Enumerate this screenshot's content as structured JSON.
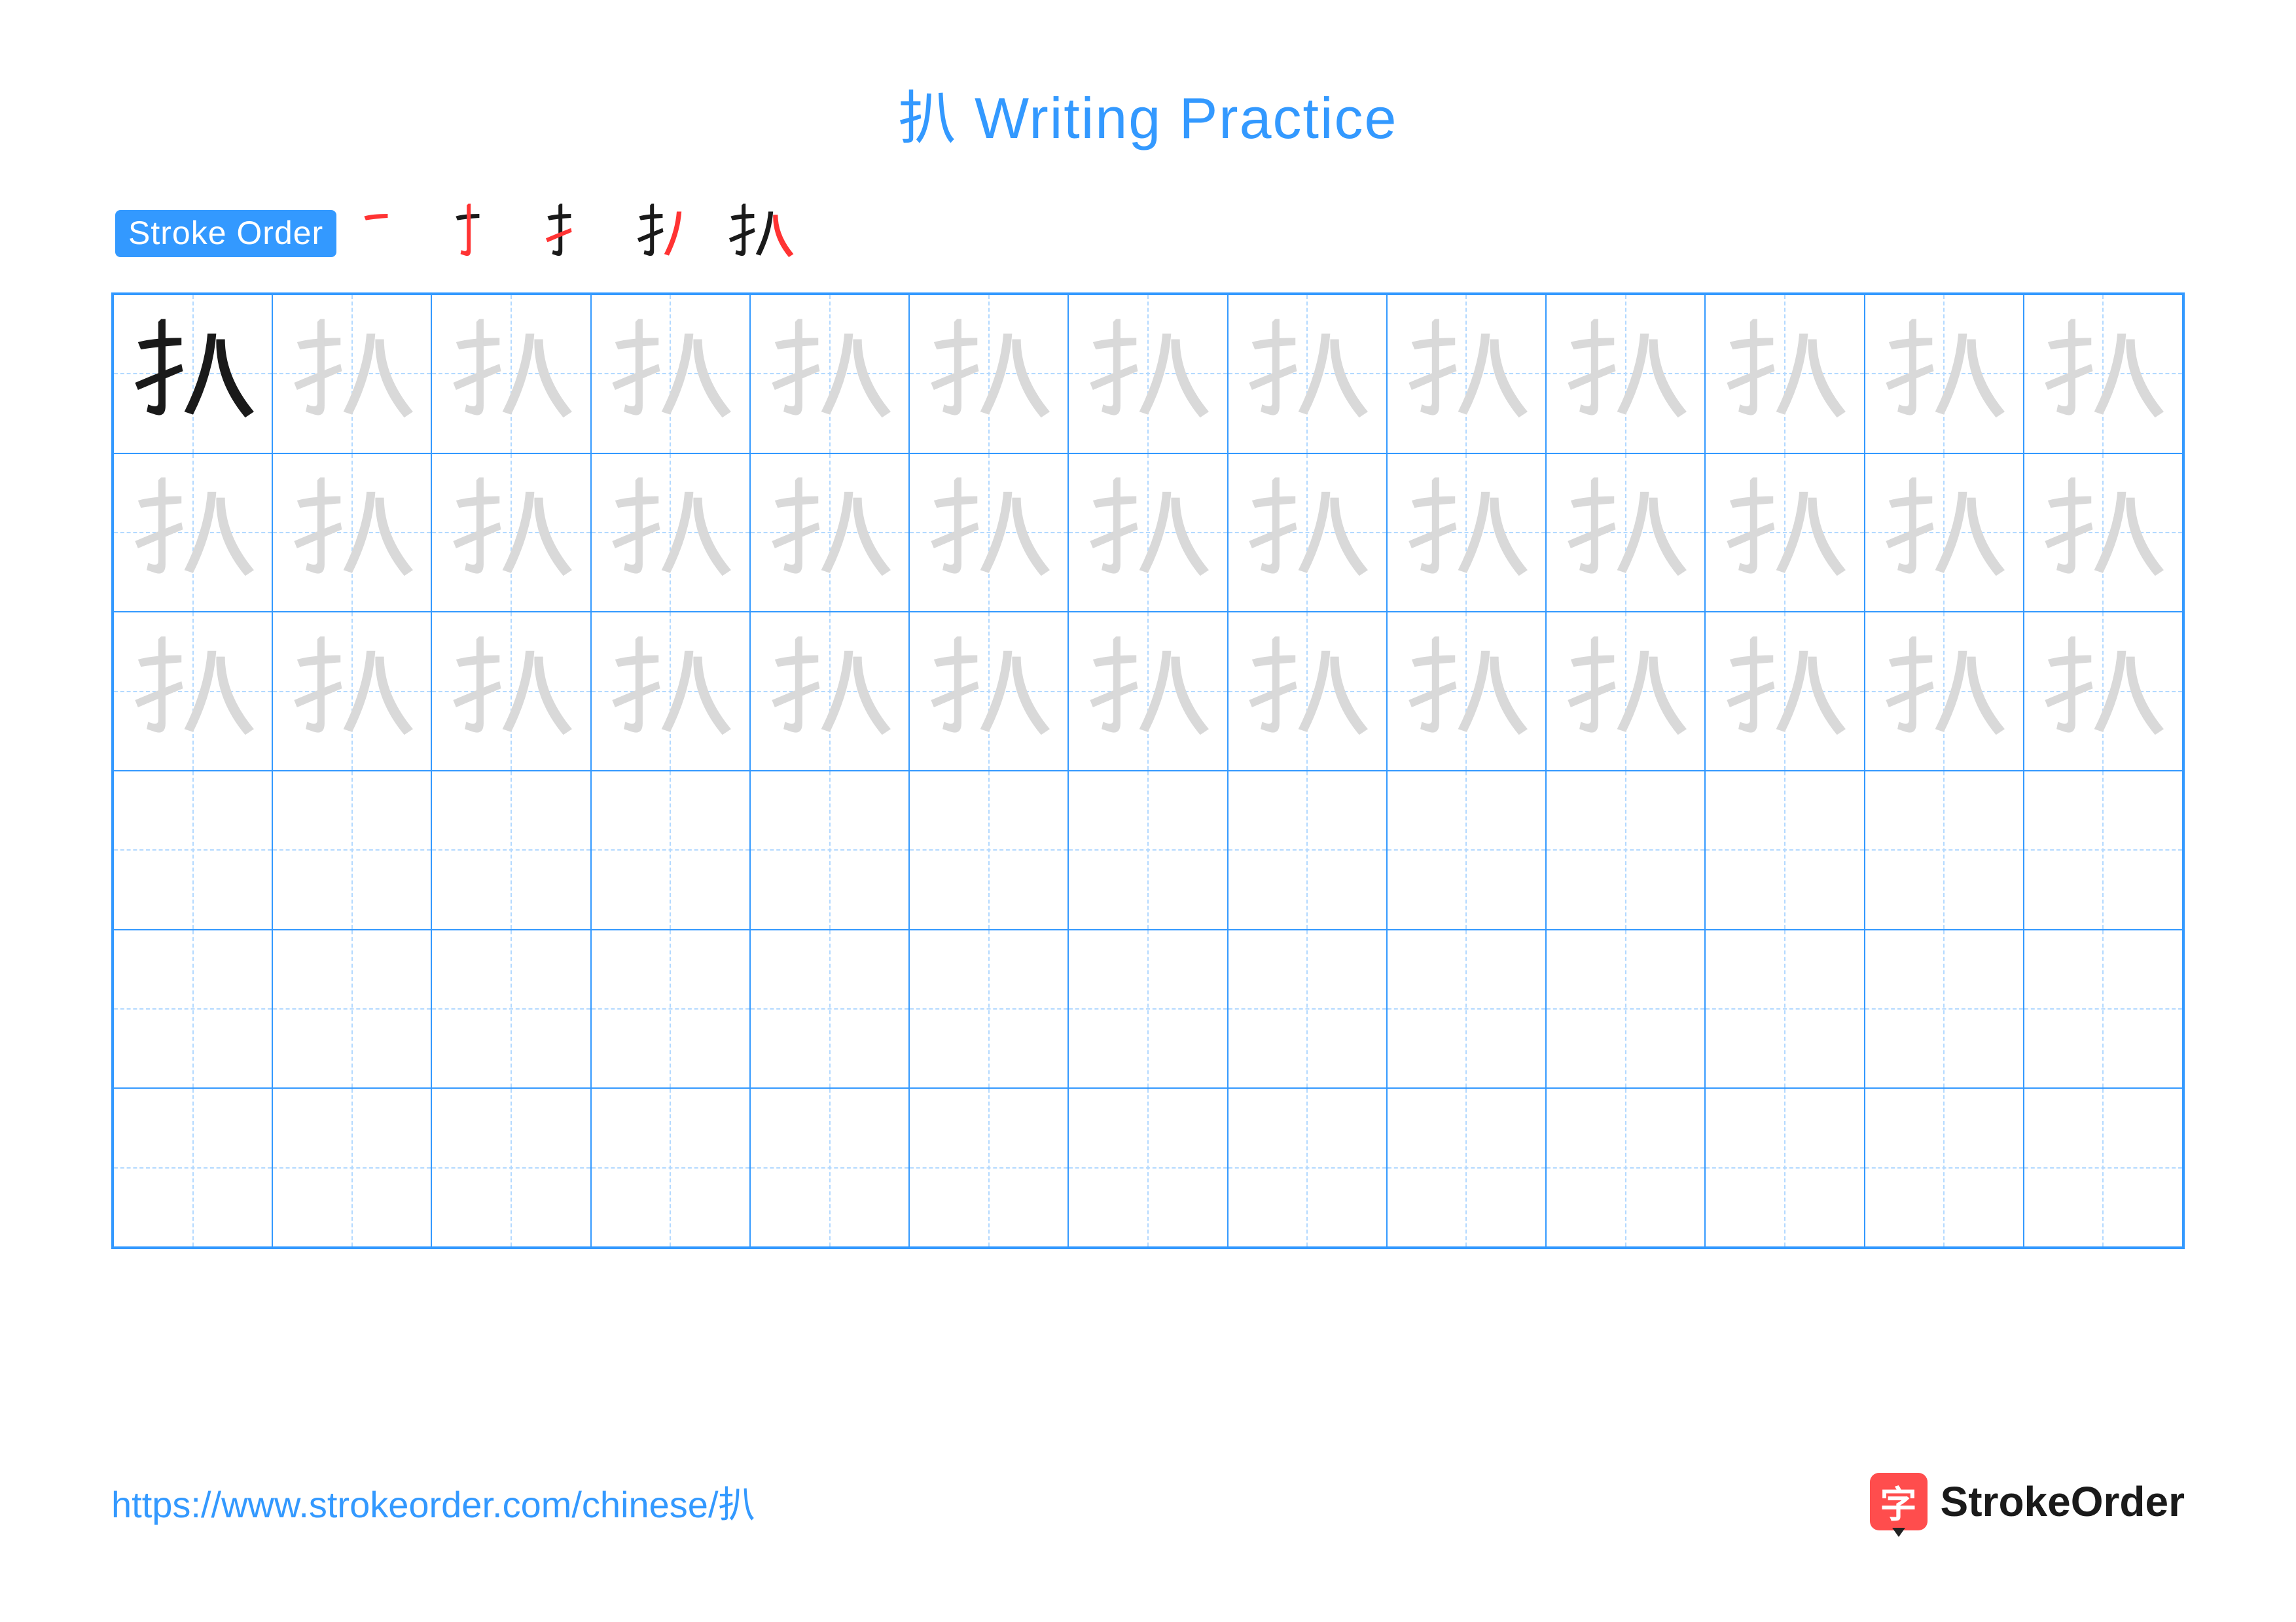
{
  "title": "扒 Writing Practice",
  "stroke_order_label": "Stroke Order",
  "character": "扒",
  "stroke_count": 5,
  "grid": {
    "cols": 13,
    "rows": 6,
    "trace_rows": 3,
    "blank_rows": 3,
    "solid_cell": {
      "row": 0,
      "col": 0
    }
  },
  "colors": {
    "accent": "#3399ff",
    "grid_border": "#3399ff",
    "guide_line": "#b3d9ff",
    "solid_char": "#1a1a1a",
    "trace_char": "#d9d9d9",
    "stroke_highlight": "#ff3333",
    "stroke_base": "#1a1a1a",
    "text_dark": "#1a1a1a",
    "logo_bg": "#ff4d4d",
    "background": "#ffffff"
  },
  "typography": {
    "title_fontsize": 88,
    "badge_fontsize": 50,
    "url_fontsize": 56,
    "logo_fontsize": 64
  },
  "footer": {
    "url": "https://www.strokeorder.com/chinese/扒",
    "logo_char": "字",
    "logo_text": "StrokeOrder"
  }
}
